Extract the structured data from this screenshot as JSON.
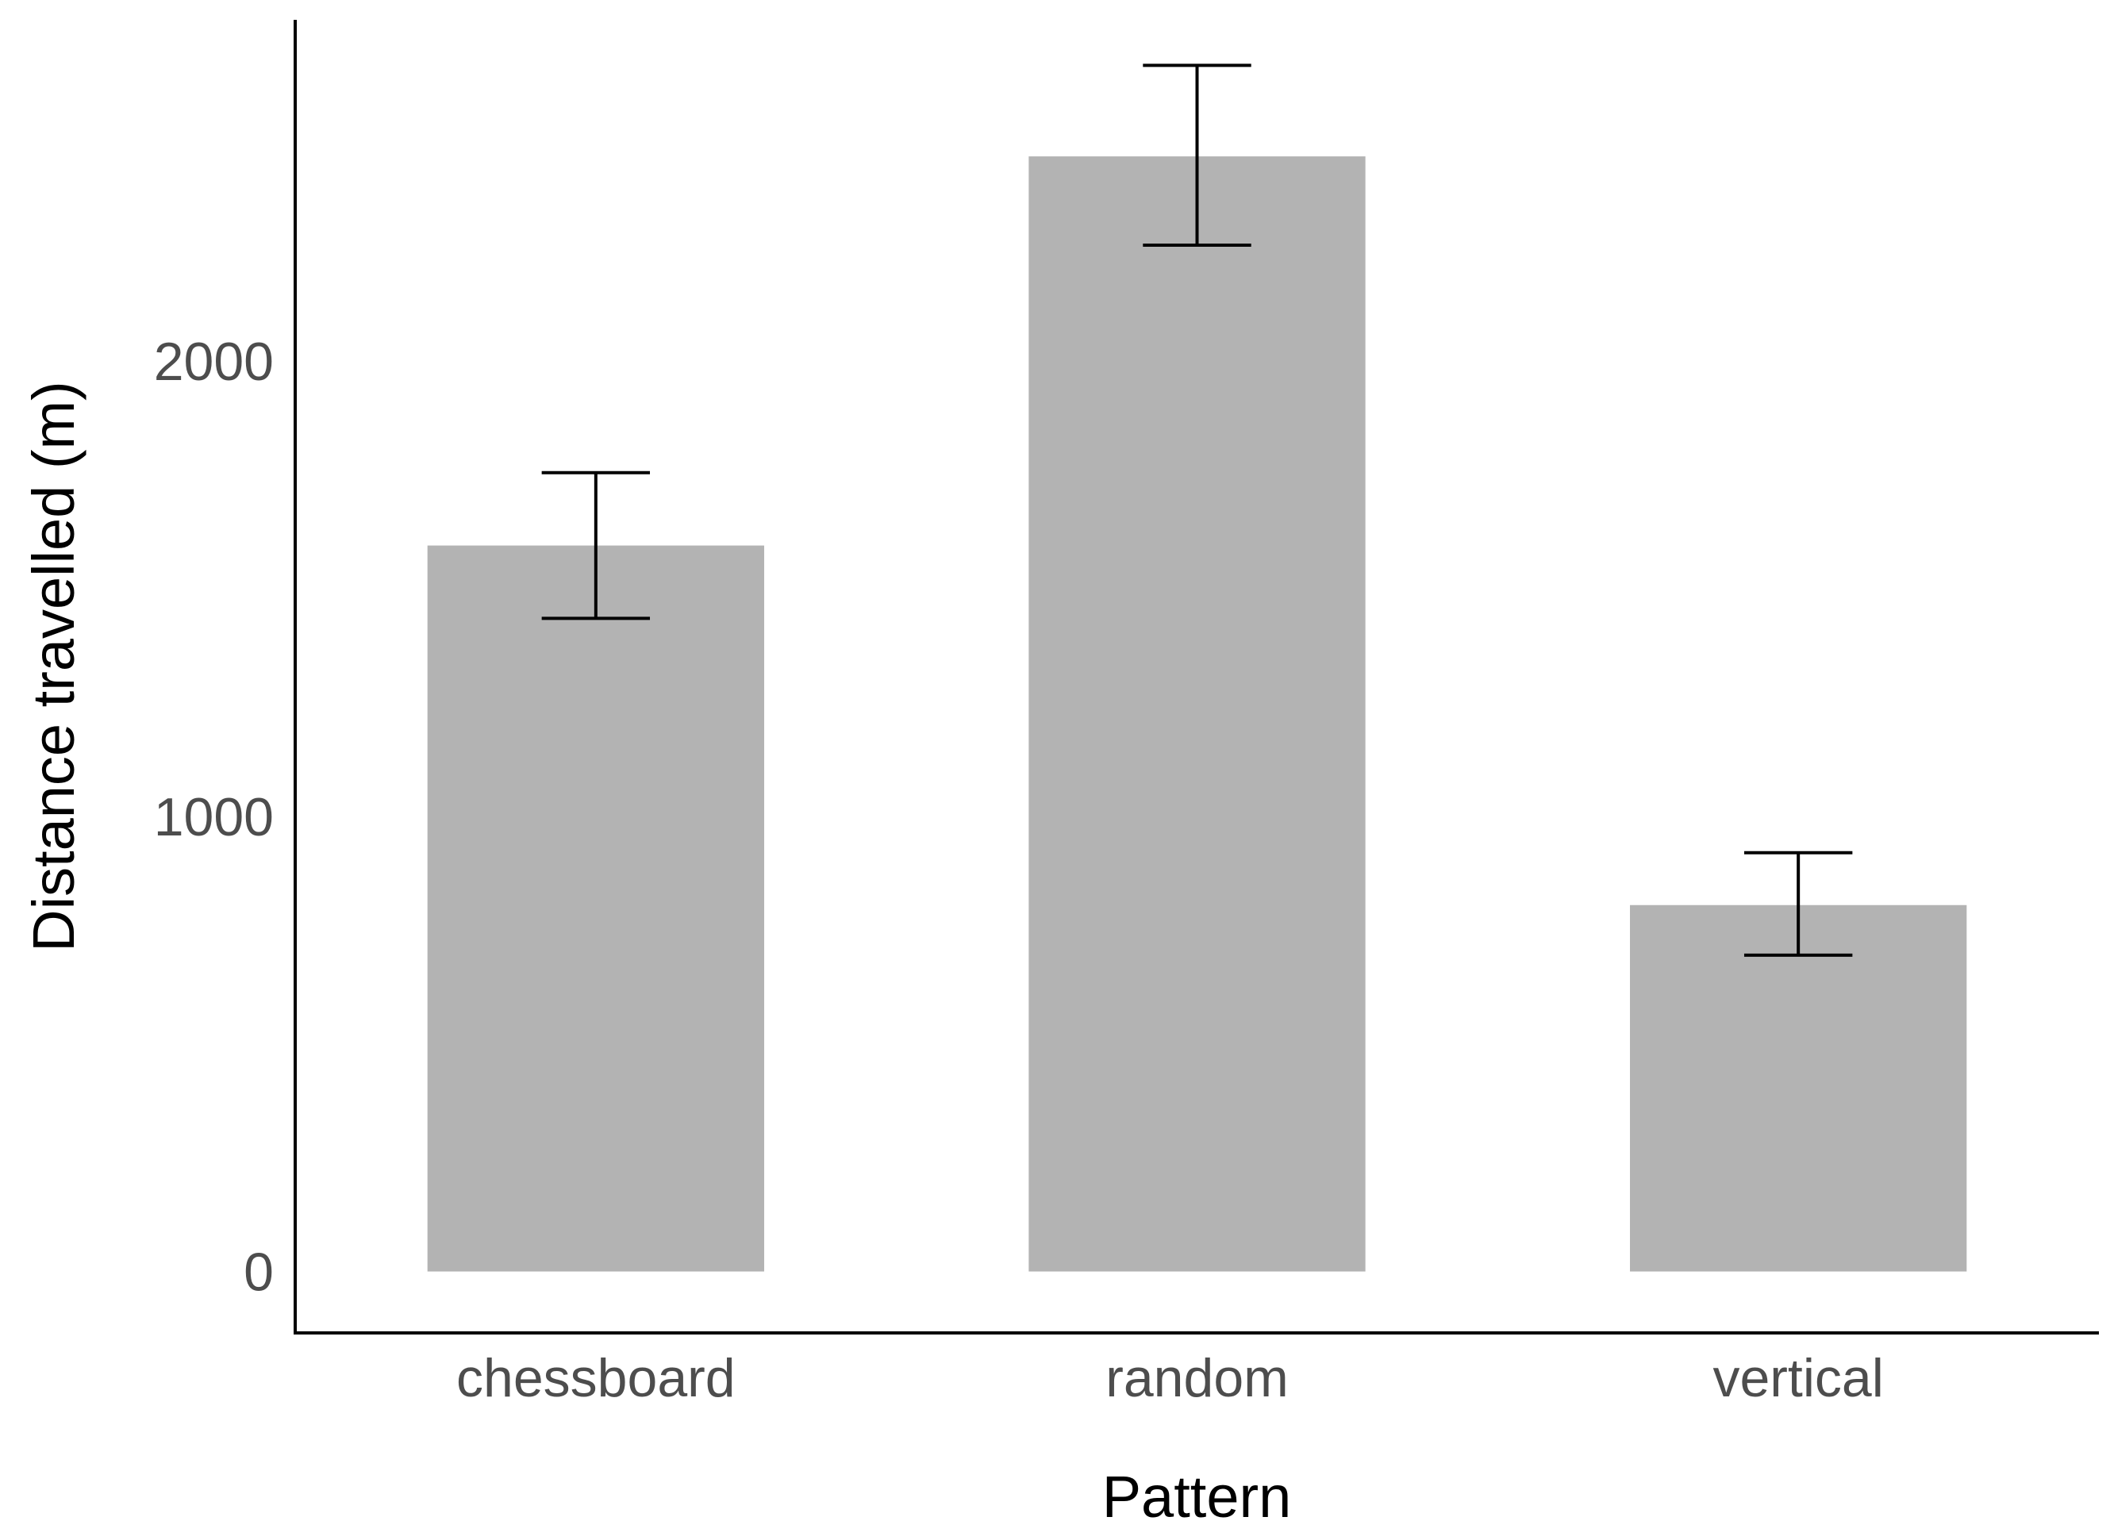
{
  "chart_data": {
    "type": "bar",
    "title": "",
    "xlabel": "Pattern",
    "ylabel": "Distance travelled (m)",
    "categories": [
      "chessboard",
      "random",
      "vertical"
    ],
    "values": [
      1595,
      2450,
      805
    ],
    "error_low": [
      1435,
      2255,
      695
    ],
    "error_high": [
      1755,
      2650,
      920
    ],
    "ylim": [
      -135,
      2750
    ],
    "yticks": [
      0,
      1000,
      2000
    ],
    "grid": false,
    "legend": "none",
    "bar_color": "#b3b3b3",
    "error_color": "#000000"
  }
}
